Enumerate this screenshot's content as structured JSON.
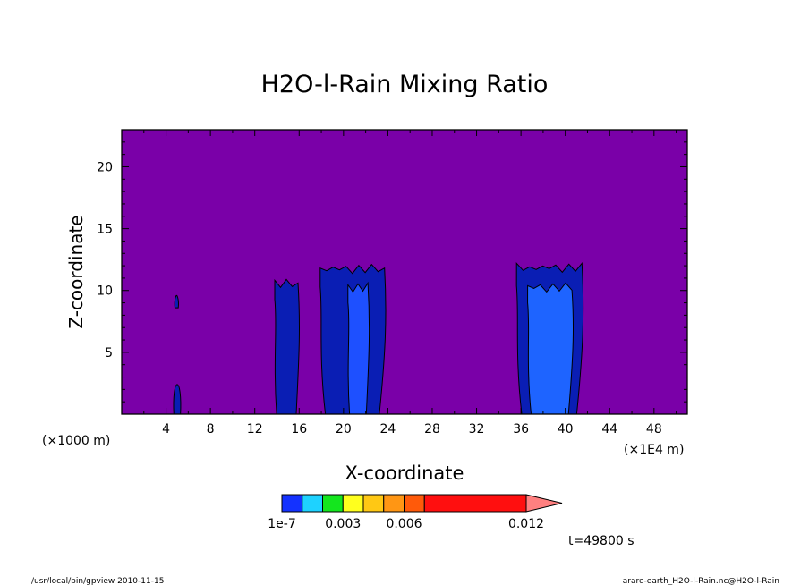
{
  "chart_data": {
    "type": "heatmap",
    "title": "H2O-l-Rain Mixing Ratio",
    "xlabel": "X-coordinate",
    "ylabel": "Z-coordinate",
    "x_unit_left": "(×1000 m)",
    "x_unit_right": "(×1E4 m)",
    "xlim": [
      0,
      51
    ],
    "ylim": [
      0,
      23
    ],
    "x_ticks": [
      4,
      8,
      12,
      16,
      20,
      24,
      28,
      32,
      36,
      40,
      44,
      48
    ],
    "y_ticks": [
      5,
      10,
      15,
      20
    ],
    "background_color": "#7a00a8",
    "colorbar": {
      "labels": [
        {
          "text": "1e-7",
          "value": 0
        },
        {
          "text": "0.003",
          "value": 0.003
        },
        {
          "text": "0.006",
          "value": 0.006
        },
        {
          "text": "0.012",
          "value": 0.012
        }
      ],
      "bins": [
        {
          "from": 0,
          "to": 0.001,
          "color": "#1432ff"
        },
        {
          "from": 0.001,
          "to": 0.002,
          "color": "#1ed2ff"
        },
        {
          "from": 0.002,
          "to": 0.003,
          "color": "#14e61e"
        },
        {
          "from": 0.003,
          "to": 0.004,
          "color": "#ffff1e"
        },
        {
          "from": 0.004,
          "to": 0.005,
          "color": "#ffc814"
        },
        {
          "from": 0.005,
          "to": 0.006,
          "color": "#ff9614"
        },
        {
          "from": 0.006,
          "to": 0.007,
          "color": "#ff5a0a"
        },
        {
          "from": 0.007,
          "to": 0.012,
          "color": "#ff0f0f"
        },
        {
          "from": 0.012,
          "to": null,
          "color": "#ff8080"
        }
      ],
      "extend": "max"
    },
    "features": [
      {
        "label": "weak-cell-x5",
        "level_color": "#0a1eb4",
        "x": [
          4.7,
          5.3
        ],
        "ztop": 2.4
      },
      {
        "label": "weak-fleck-x5",
        "level_color": "#0a1eb4",
        "x": [
          4.8,
          5.1
        ],
        "ztop": 9.6,
        "zbottom": 8.6
      },
      {
        "label": "cell-x15",
        "level_color": "#0a1eb4",
        "x": [
          13.8,
          15.9
        ],
        "ztop": 10.9
      },
      {
        "label": "cell-x20-outer",
        "level_color": "#0a1eb4",
        "x": [
          17.9,
          23.7
        ],
        "ztop": 12.1
      },
      {
        "label": "cell-x20-inner",
        "level_color": "#1e50ff",
        "x": [
          20.4,
          22.2
        ],
        "ztop": 10.6
      },
      {
        "label": "cell-x38-outer",
        "level_color": "#0a1eb4",
        "x": [
          35.6,
          41.5
        ],
        "ztop": 12.2
      },
      {
        "label": "cell-x38-inner",
        "level_color": "#1e64ff",
        "x": [
          36.6,
          40.6
        ],
        "ztop": 10.6
      }
    ]
  },
  "annotations": {
    "time": "t=49800 s",
    "footer_left": "/usr/local/bin/gpview  2010-11-15",
    "footer_right": "arare-earth_H2O-l-Rain.nc@H2O-l-Rain"
  }
}
